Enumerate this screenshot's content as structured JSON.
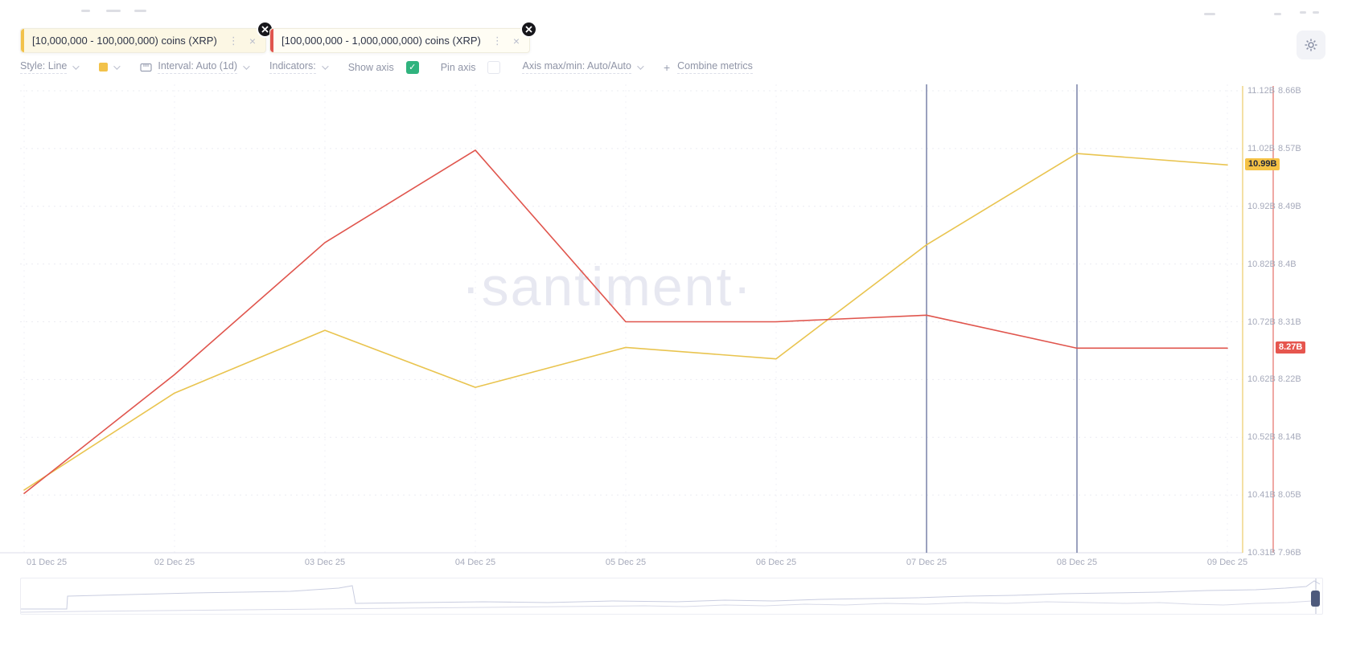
{
  "watermark": "·santiment·",
  "metrics": [
    {
      "label": "[10,000,000 - 100,000,000) coins (XRP)",
      "color": "#f2c24a",
      "bg": "#fcf7e4"
    },
    {
      "label": "[100,000,000 - 1,000,000,000) coins (XRP)",
      "color": "#e0554d",
      "bg": "#fffdf4"
    }
  ],
  "toolbar": {
    "style_label": "Style: Line",
    "swatch_color": "#f2c24a",
    "interval_label": "Interval: Auto (1d)",
    "indicators_label": "Indicators:",
    "show_axis_label": "Show axis",
    "show_axis_checked": true,
    "checkbox_on_color": "#30b37e",
    "pin_axis_label": "Pin axis",
    "pin_axis_checked": false,
    "axis_maxmin_label": "Axis max/min: Auto/Auto",
    "combine_plus": "+",
    "combine_label": "Combine metrics"
  },
  "chart_data": {
    "type": "line",
    "x": [
      "01 Dec 25",
      "02 Dec 25",
      "03 Dec 25",
      "04 Dec 25",
      "05 Dec 25",
      "06 Dec 25",
      "07 Dec 25",
      "08 Dec 25",
      "09 Dec 25"
    ],
    "series": [
      {
        "name": "[10,000,000 - 100,000,000) coins (XRP)",
        "color": "#e9c44f",
        "values": [
          10.42,
          10.59,
          10.7,
          10.6,
          10.67,
          10.65,
          10.85,
          11.01,
          10.99
        ],
        "ylim": [
          10.31,
          11.12
        ],
        "ticks": [
          "11.12B",
          "11.02B",
          "10.92B",
          "10.82B",
          "10.72B",
          "10.62B",
          "10.52B",
          "10.41B",
          "10.31B"
        ],
        "last_badge": {
          "text": "10.99B",
          "bg": "#f5c245",
          "fg": "#20263a"
        }
      },
      {
        "name": "[100,000,000 - 1,000,000,000) coins (XRP)",
        "color": "#e0554d",
        "values": [
          8.05,
          8.23,
          8.43,
          8.57,
          8.31,
          8.31,
          8.32,
          8.27,
          8.27
        ],
        "ylim": [
          7.96,
          8.66
        ],
        "ticks": [
          "8.66B",
          "8.57B",
          "8.49B",
          "8.4B",
          "8.31B",
          "8.22B",
          "8.14B",
          "8.05B",
          "7.96B"
        ],
        "last_badge": {
          "text": "8.27B",
          "bg": "#e6564e",
          "fg": "#ffffff"
        }
      }
    ],
    "marker_day_indices": [
      6,
      7
    ],
    "marker_color": "#6f79a3",
    "grid": true,
    "legend_position": "top-chips",
    "title": "",
    "xlabel": "",
    "ylabel": ""
  },
  "navigator": {
    "line1": [
      [
        0,
        38
      ],
      [
        57,
        38
      ],
      [
        58,
        22
      ],
      [
        135,
        20
      ],
      [
        215,
        18
      ],
      [
        275,
        17
      ],
      [
        335,
        16
      ],
      [
        395,
        12
      ],
      [
        412,
        9
      ],
      [
        416,
        31
      ],
      [
        495,
        30
      ],
      [
        575,
        29
      ],
      [
        655,
        30
      ],
      [
        735,
        28
      ],
      [
        815,
        29
      ],
      [
        875,
        27
      ],
      [
        935,
        28
      ],
      [
        995,
        26
      ],
      [
        1055,
        25
      ],
      [
        1115,
        24
      ],
      [
        1175,
        22
      ],
      [
        1235,
        21
      ],
      [
        1295,
        19
      ],
      [
        1355,
        18
      ],
      [
        1415,
        17
      ],
      [
        1475,
        15
      ],
      [
        1535,
        14
      ],
      [
        1572,
        12
      ],
      [
        1598,
        10
      ],
      [
        1608,
        3
      ],
      [
        1615,
        7
      ]
    ],
    "line2": [
      [
        0,
        42
      ],
      [
        75,
        41
      ],
      [
        175,
        40
      ],
      [
        275,
        39
      ],
      [
        375,
        38
      ],
      [
        475,
        37
      ],
      [
        575,
        36
      ],
      [
        675,
        35
      ],
      [
        775,
        34
      ],
      [
        825,
        35
      ],
      [
        875,
        33
      ],
      [
        925,
        34
      ],
      [
        975,
        32
      ],
      [
        1025,
        33
      ],
      [
        1075,
        31
      ],
      [
        1125,
        32
      ],
      [
        1175,
        30
      ],
      [
        1225,
        31
      ],
      [
        1275,
        29
      ],
      [
        1325,
        30
      ],
      [
        1375,
        31
      ],
      [
        1415,
        30
      ],
      [
        1455,
        32
      ],
      [
        1495,
        33
      ],
      [
        1535,
        31
      ],
      [
        1575,
        30
      ],
      [
        1605,
        28
      ],
      [
        1615,
        29
      ]
    ],
    "line_colors": [
      "#c9cde0",
      "#d8dae8"
    ]
  }
}
